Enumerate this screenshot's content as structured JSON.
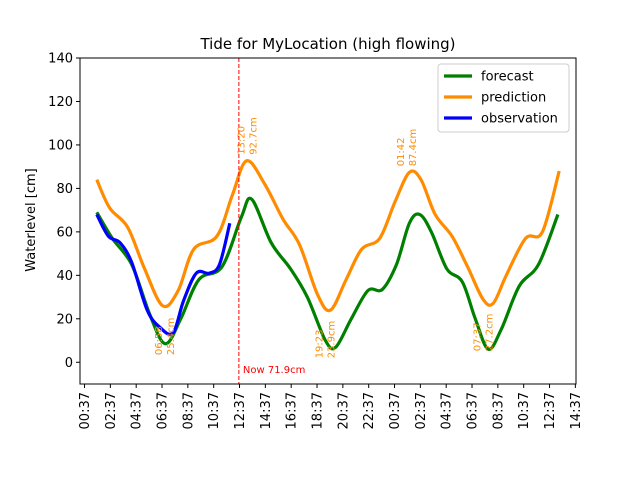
{
  "chart_data": {
    "type": "line",
    "title": "Tide for MyLocation (high flowing)",
    "xlabel": "",
    "ylabel": "Waterlevel [cm]",
    "xlim": [
      0,
      38.4
    ],
    "ylim": [
      -10,
      140
    ],
    "yticks": [
      0,
      20,
      40,
      60,
      80,
      100,
      120,
      140
    ],
    "x_unit": "hours after 00:37",
    "xtick_labels": [
      "00:37",
      "02:37",
      "04:37",
      "06:37",
      "08:37",
      "10:37",
      "12:37",
      "14:37",
      "16:37",
      "18:37",
      "20:37",
      "22:37",
      "00:37",
      "02:37",
      "04:37",
      "06:37",
      "08:37",
      "10:37",
      "12:37",
      "14:37"
    ],
    "legend": {
      "position": "top-right",
      "entries": [
        "forecast",
        "prediction",
        "observation"
      ]
    },
    "series": [
      {
        "name": "forecast",
        "color": "#008000",
        "points": [
          [
            1.3,
            69
          ],
          [
            2.5,
            57
          ],
          [
            4.0,
            45
          ],
          [
            5.4,
            22
          ],
          [
            6.6,
            8.5
          ],
          [
            7.8,
            20
          ],
          [
            9.2,
            38
          ],
          [
            11.0,
            44
          ],
          [
            12.5,
            67
          ],
          [
            13.3,
            75
          ],
          [
            14.8,
            55
          ],
          [
            16.3,
            43
          ],
          [
            17.6,
            30
          ],
          [
            19.0,
            10
          ],
          [
            19.8,
            7
          ],
          [
            21.0,
            20
          ],
          [
            22.3,
            33
          ],
          [
            23.4,
            33.5
          ],
          [
            24.5,
            45
          ],
          [
            25.5,
            64
          ],
          [
            26.3,
            68
          ],
          [
            27.2,
            60
          ],
          [
            28.4,
            43
          ],
          [
            29.6,
            37
          ],
          [
            30.6,
            20
          ],
          [
            31.6,
            6
          ],
          [
            32.6,
            15
          ],
          [
            34.0,
            35
          ],
          [
            35.5,
            45
          ],
          [
            37.0,
            68
          ]
        ]
      },
      {
        "name": "prediction",
        "color": "#ff8c00",
        "points": [
          [
            1.3,
            84
          ],
          [
            2.3,
            71
          ],
          [
            3.7,
            62
          ],
          [
            5.0,
            43
          ],
          [
            6.4,
            26
          ],
          [
            7.6,
            33
          ],
          [
            8.8,
            52
          ],
          [
            10.6,
            58
          ],
          [
            11.8,
            77
          ],
          [
            12.9,
            92.7
          ],
          [
            14.3,
            82
          ],
          [
            15.7,
            66
          ],
          [
            17.0,
            54
          ],
          [
            18.4,
            31
          ],
          [
            19.4,
            24
          ],
          [
            20.6,
            38
          ],
          [
            21.8,
            52
          ],
          [
            23.2,
            57
          ],
          [
            24.4,
            74
          ],
          [
            25.5,
            87.4
          ],
          [
            26.4,
            84
          ],
          [
            27.5,
            68
          ],
          [
            28.8,
            58
          ],
          [
            30.0,
            44
          ],
          [
            31.2,
            29
          ],
          [
            32.0,
            27.2
          ],
          [
            33.0,
            40
          ],
          [
            34.5,
            57
          ],
          [
            35.8,
            60
          ],
          [
            37.1,
            88
          ]
        ]
      },
      {
        "name": "observation",
        "color": "#0000ff",
        "points": [
          [
            1.3,
            68
          ],
          [
            2.2,
            58
          ],
          [
            3.1,
            55
          ],
          [
            4.0,
            46
          ],
          [
            5.2,
            24
          ],
          [
            6.2,
            16
          ],
          [
            7.2,
            13.5
          ],
          [
            8.0,
            28
          ],
          [
            9.0,
            41
          ],
          [
            10.0,
            41
          ],
          [
            10.8,
            45
          ],
          [
            11.6,
            64
          ]
        ]
      }
    ],
    "extrema_labels": [
      {
        "time": "06:58",
        "value": "25.4cm",
        "x": 6.35,
        "y": 25.4
      },
      {
        "time": "13:20",
        "value": "92.7cm",
        "x": 12.72,
        "y": 92.7
      },
      {
        "time": "19:23",
        "value": "23.9cm",
        "x": 18.77,
        "y": 23.9
      },
      {
        "time": "01:42",
        "value": "87.4cm",
        "x": 25.08,
        "y": 87.4
      },
      {
        "time": "07:37",
        "value": "27.2cm",
        "x": 31.0,
        "y": 27.2
      }
    ],
    "now_marker": {
      "x": 12.3,
      "label": "Now 71.9cm",
      "color": "#ff0000"
    }
  }
}
